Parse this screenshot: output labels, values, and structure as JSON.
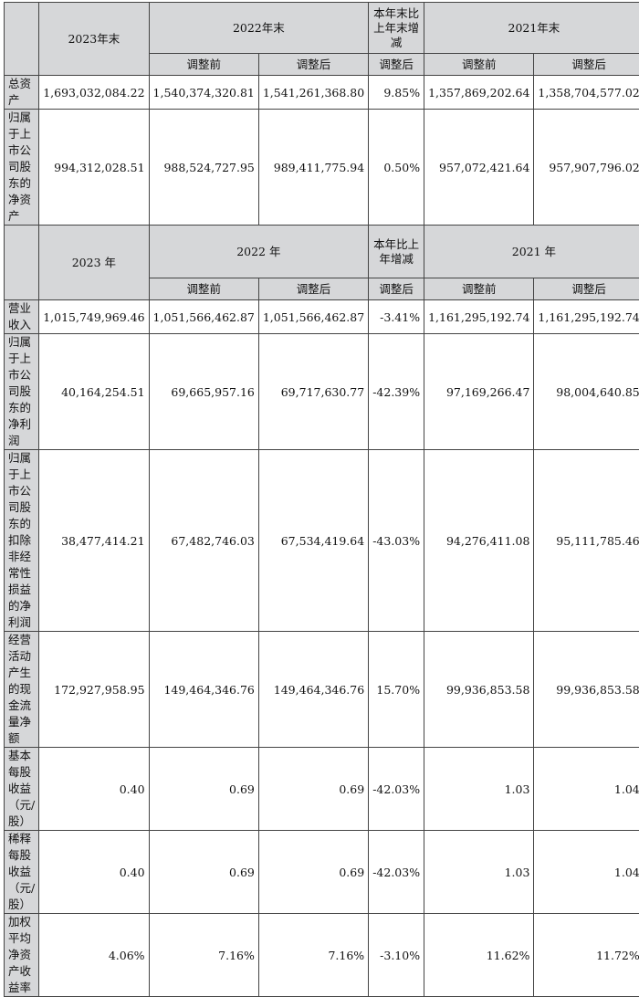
{
  "header1": {
    "col_2023": "2023年末",
    "col_2022": "2022年末",
    "col_change": "本年末比上年末增减",
    "col_2021": "2021年末",
    "sub_before": "调整前",
    "sub_after": "调整后",
    "sub_change": "调整后"
  },
  "header2": {
    "col_2023": "2023 年",
    "col_2022": "2022 年",
    "col_change": "本年比上年增减",
    "col_2021": "2021 年",
    "sub_before": "调整前",
    "sub_after": "调整后",
    "sub_change": "调整后"
  },
  "balance_rows": [
    {
      "label": "总资产",
      "v2023": "1,693,032,084.22",
      "v2022_before": "1,540,374,320.81",
      "v2022_after": "1,541,261,368.80",
      "change": "9.85%",
      "v2021_before": "1,357,869,202.64",
      "v2021_after": "1,358,704,577.02"
    },
    {
      "label": "归属于上市公司股东的净资产",
      "v2023": "994,312,028.51",
      "v2022_before": "988,524,727.95",
      "v2022_after": "989,411,775.94",
      "change": "0.50%",
      "v2021_before": "957,072,421.64",
      "v2021_after": "957,907,796.02"
    }
  ],
  "income_rows": [
    {
      "label": "营业收入",
      "v2023": "1,015,749,969.46",
      "v2022_before": "1,051,566,462.87",
      "v2022_after": "1,051,566,462.87",
      "change": "-3.41%",
      "v2021_before": "1,161,295,192.74",
      "v2021_after": "1,161,295,192.74"
    },
    {
      "label": "归属于上市公司股东的净利润",
      "v2023": "40,164,254.51",
      "v2022_before": "69,665,957.16",
      "v2022_after": "69,717,630.77",
      "change": "-42.39%",
      "v2021_before": "97,169,266.47",
      "v2021_after": "98,004,640.85"
    },
    {
      "label": "归属于上市公司股东的扣除非经常性损益的净利润",
      "v2023": "38,477,414.21",
      "v2022_before": "67,482,746.03",
      "v2022_after": "67,534,419.64",
      "change": "-43.03%",
      "v2021_before": "94,276,411.08",
      "v2021_after": "95,111,785.46"
    },
    {
      "label": "经营活动产生的现金流量净额",
      "v2023": "172,927,958.95",
      "v2022_before": "149,464,346.76",
      "v2022_after": "149,464,346.76",
      "change": "15.70%",
      "v2021_before": "99,936,853.58",
      "v2021_after": "99,936,853.58"
    },
    {
      "label": "基本每股收益（元/股）",
      "v2023": "0.40",
      "v2022_before": "0.69",
      "v2022_after": "0.69",
      "change": "-42.03%",
      "v2021_before": "1.03",
      "v2021_after": "1.04"
    },
    {
      "label": "稀释每股收益（元/股）",
      "v2023": "0.40",
      "v2022_before": "0.69",
      "v2022_after": "0.69",
      "change": "-42.03%",
      "v2021_before": "1.03",
      "v2021_after": "1.04"
    },
    {
      "label": "加权平均净资产收益率",
      "v2023": "4.06%",
      "v2022_before": "7.16%",
      "v2022_after": "7.16%",
      "change": "-3.10%",
      "v2021_before": "11.62%",
      "v2021_after": "11.72%"
    }
  ]
}
